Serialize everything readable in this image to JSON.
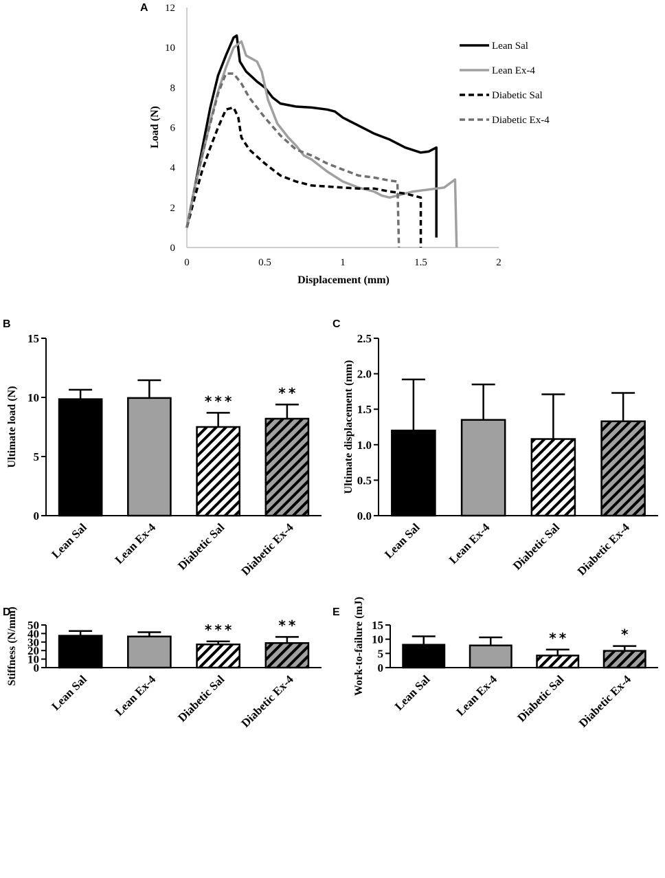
{
  "colors": {
    "black": "#000000",
    "gray": "#a0a0a0",
    "dark_gray": "#707070",
    "white": "#ffffff"
  },
  "chart_data": [
    {
      "panel": "A",
      "type": "line",
      "xlabel": "Displacement (mm)",
      "ylabel": "Load (N)",
      "xlim": [
        0,
        2
      ],
      "ylim": [
        0,
        12
      ],
      "xticks": [
        "0",
        "0.5",
        "1",
        "1.5",
        "2"
      ],
      "yticks": [
        "0",
        "2",
        "4",
        "6",
        "8",
        "10",
        "12"
      ],
      "legend_position": "top-right",
      "series": [
        {
          "name": "Lean Sal",
          "color": "#000000",
          "dash": false,
          "points": [
            [
              0,
              1
            ],
            [
              0.05,
              3
            ],
            [
              0.1,
              5
            ],
            [
              0.15,
              7
            ],
            [
              0.2,
              8.6
            ],
            [
              0.25,
              9.6
            ],
            [
              0.3,
              10.5
            ],
            [
              0.32,
              10.6
            ],
            [
              0.34,
              9.3
            ],
            [
              0.38,
              8.8
            ],
            [
              0.45,
              8.3
            ],
            [
              0.5,
              8
            ],
            [
              0.55,
              7.5
            ],
            [
              0.6,
              7.2
            ],
            [
              0.7,
              7.05
            ],
            [
              0.8,
              7
            ],
            [
              0.9,
              6.9
            ],
            [
              0.95,
              6.8
            ],
            [
              1,
              6.5
            ],
            [
              1.1,
              6.1
            ],
            [
              1.2,
              5.7
            ],
            [
              1.3,
              5.4
            ],
            [
              1.4,
              5
            ],
            [
              1.5,
              4.75
            ],
            [
              1.55,
              4.8
            ],
            [
              1.6,
              5
            ],
            [
              1.6,
              0.5
            ]
          ]
        },
        {
          "name": "Lean Ex-4",
          "color": "#a0a0a0",
          "dash": false,
          "points": [
            [
              0,
              1
            ],
            [
              0.05,
              3
            ],
            [
              0.1,
              4.6
            ],
            [
              0.15,
              6.3
            ],
            [
              0.2,
              7.8
            ],
            [
              0.25,
              9
            ],
            [
              0.3,
              10
            ],
            [
              0.35,
              10.3
            ],
            [
              0.38,
              9.6
            ],
            [
              0.45,
              9.3
            ],
            [
              0.48,
              8.8
            ],
            [
              0.52,
              7.4
            ],
            [
              0.58,
              6.2
            ],
            [
              0.65,
              5.5
            ],
            [
              0.7,
              5.1
            ],
            [
              0.75,
              4.6
            ],
            [
              0.8,
              4.4
            ],
            [
              0.9,
              3.8
            ],
            [
              1,
              3.3
            ],
            [
              1.1,
              3
            ],
            [
              1.2,
              2.8
            ],
            [
              1.25,
              2.6
            ],
            [
              1.3,
              2.5
            ],
            [
              1.35,
              2.6
            ],
            [
              1.45,
              2.8
            ],
            [
              1.55,
              2.9
            ],
            [
              1.65,
              3
            ],
            [
              1.72,
              3.4
            ],
            [
              1.73,
              0
            ]
          ]
        },
        {
          "name": "Diabetic Sal",
          "color": "#000000",
          "dash": true,
          "points": [
            [
              0,
              1
            ],
            [
              0.05,
              2.5
            ],
            [
              0.1,
              3.9
            ],
            [
              0.15,
              5
            ],
            [
              0.2,
              6
            ],
            [
              0.25,
              6.9
            ],
            [
              0.3,
              7
            ],
            [
              0.33,
              6.5
            ],
            [
              0.35,
              5.5
            ],
            [
              0.4,
              4.9
            ],
            [
              0.5,
              4.2
            ],
            [
              0.6,
              3.6
            ],
            [
              0.7,
              3.3
            ],
            [
              0.8,
              3.1
            ],
            [
              1,
              3
            ],
            [
              1.1,
              2.95
            ],
            [
              1.2,
              2.95
            ],
            [
              1.3,
              2.8
            ],
            [
              1.4,
              2.7
            ],
            [
              1.5,
              2.5
            ],
            [
              1.5,
              0
            ]
          ]
        },
        {
          "name": "Diabetic Ex-4",
          "color": "#707070",
          "dash": true,
          "points": [
            [
              0,
              1
            ],
            [
              0.05,
              3
            ],
            [
              0.1,
              4.7
            ],
            [
              0.15,
              6.2
            ],
            [
              0.2,
              7.7
            ],
            [
              0.25,
              8.7
            ],
            [
              0.3,
              8.7
            ],
            [
              0.35,
              8.2
            ],
            [
              0.4,
              7.5
            ],
            [
              0.5,
              6.5
            ],
            [
              0.6,
              5.6
            ],
            [
              0.7,
              4.9
            ],
            [
              0.8,
              4.6
            ],
            [
              0.9,
              4.2
            ],
            [
              1,
              3.9
            ],
            [
              1.1,
              3.6
            ],
            [
              1.2,
              3.5
            ],
            [
              1.3,
              3.35
            ],
            [
              1.35,
              3.3
            ],
            [
              1.36,
              0
            ]
          ]
        }
      ]
    },
    {
      "panel": "B",
      "type": "bar",
      "ylabel": "Ultimate load (N)",
      "ylim": [
        0,
        15
      ],
      "yticks": [
        "0",
        "5",
        "10",
        "15"
      ],
      "categories": [
        "Lean Sal",
        "Lean Ex-4",
        "Diabetic Sal",
        "Diabetic Ex-4"
      ],
      "values": [
        9.85,
        9.95,
        7.5,
        8.2
      ],
      "errors": [
        0.8,
        1.5,
        1.2,
        1.2
      ],
      "significance": [
        "",
        "",
        "***",
        "**"
      ]
    },
    {
      "panel": "C",
      "type": "bar",
      "ylabel": "Ultimate displacement (mm)",
      "ylim": [
        0,
        2.5
      ],
      "yticks": [
        "0.0",
        "0.5",
        "1.0",
        "1.5",
        "2.0",
        "2.5"
      ],
      "categories": [
        "Lean Sal",
        "Lean Ex-4",
        "Diabetic Sal",
        "Diabetic Ex-4"
      ],
      "values": [
        1.2,
        1.35,
        1.08,
        1.33
      ],
      "errors": [
        0.72,
        0.5,
        0.63,
        0.4
      ],
      "significance": [
        "",
        "",
        "",
        ""
      ]
    },
    {
      "panel": "D",
      "type": "bar",
      "ylabel": "Stiffness (N/mm)",
      "ylim": [
        0,
        50
      ],
      "yticks": [
        "0",
        "10",
        "20",
        "30",
        "40",
        "50"
      ],
      "categories": [
        "Lean Sal",
        "Lean Ex-4",
        "Diabetic Sal",
        "Diabetic Ex-4"
      ],
      "values": [
        37.4,
        36.5,
        27.2,
        28.8
      ],
      "errors": [
        5.5,
        5,
        3.5,
        7.2
      ],
      "significance": [
        "",
        "",
        "***",
        "**"
      ]
    },
    {
      "panel": "E",
      "type": "bar",
      "ylabel": "Work-to-failure (mJ)",
      "ylim": [
        0,
        15
      ],
      "yticks": [
        "0",
        "5",
        "10",
        "15"
      ],
      "categories": [
        "Lean Sal",
        "Lean Ex-4",
        "Diabetic Sal",
        "Diabetic Ex-4"
      ],
      "values": [
        8.05,
        7.8,
        4.25,
        5.9
      ],
      "errors": [
        2.95,
        2.85,
        2.1,
        1.7
      ],
      "significance": [
        "",
        "",
        "**",
        "*"
      ]
    }
  ]
}
